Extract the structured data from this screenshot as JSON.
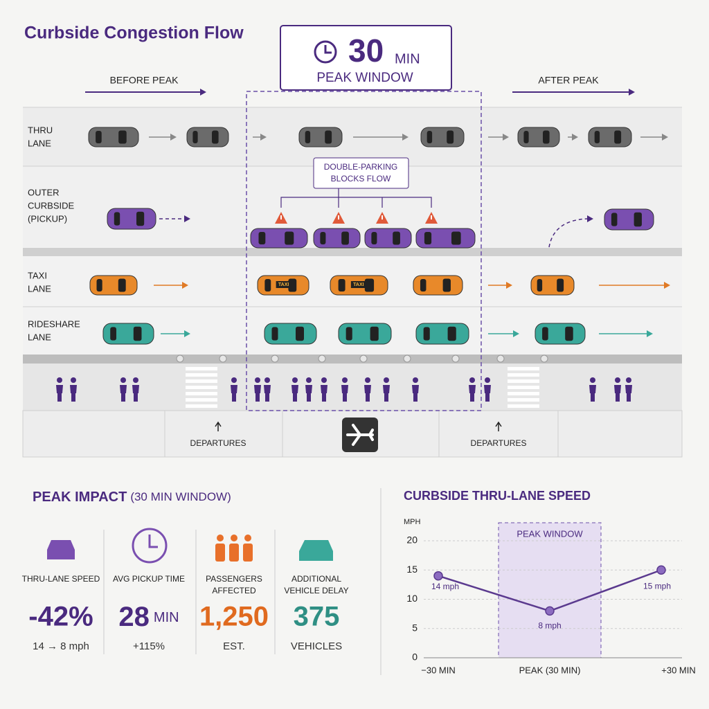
{
  "header": {
    "title": "Curbside Congestion Flow"
  },
  "peak_box": {
    "number": "30",
    "unit": "MIN",
    "label": "PEAK WINDOW"
  },
  "phases": {
    "before": "BEFORE PEAK",
    "after": "AFTER PEAK"
  },
  "lanes": [
    {
      "label": [
        "THRU",
        "LANE"
      ]
    },
    {
      "label": [
        "OUTER",
        "CURBSIDE",
        "(PICKUP)"
      ]
    },
    {
      "label": [
        "TAXI",
        "LANE"
      ]
    },
    {
      "label": [
        "RIDESHARE",
        "LANE"
      ]
    }
  ],
  "callout": [
    "DOUBLE-PARKING",
    "BLOCKS FLOW"
  ],
  "taxi_sign": "TAXI",
  "terminal": {
    "doors": [
      "DEPARTURES",
      "DEPARTURES"
    ]
  },
  "impact": {
    "title": "PEAK IMPACT",
    "subtitle": "(30 MIN WINDOW)",
    "metrics": [
      {
        "label": [
          "THRU-LANE SPEED"
        ],
        "value": "-42%",
        "note": "14 → 8 mph"
      },
      {
        "label": [
          "AVG PICKUP TIME"
        ],
        "value": "28",
        "unit": "MIN",
        "note": "+115%"
      },
      {
        "label": [
          "PASSENGERS",
          "AFFECTED"
        ],
        "value": "1,250",
        "note": "EST."
      },
      {
        "label": [
          "ADDITIONAL",
          "VEHICLE DELAY"
        ],
        "value": "375",
        "note": "VEHICLES"
      }
    ]
  },
  "chart_data": {
    "type": "line",
    "title": "CURBSIDE THRU-LANE SPEED",
    "y_label": "MPH",
    "categories": [
      "−30 MIN",
      "PEAK (30 MIN)",
      "+30 MIN"
    ],
    "values": [
      14,
      8,
      15
    ],
    "value_labels": [
      "14 mph",
      "8 mph",
      "15 mph"
    ],
    "color": "#5b3a8f",
    "annotation": "PEAK WINDOW",
    "ylim": [
      0,
      20
    ],
    "yticks": [
      0,
      5,
      10,
      15,
      20
    ],
    "grid": true
  }
}
